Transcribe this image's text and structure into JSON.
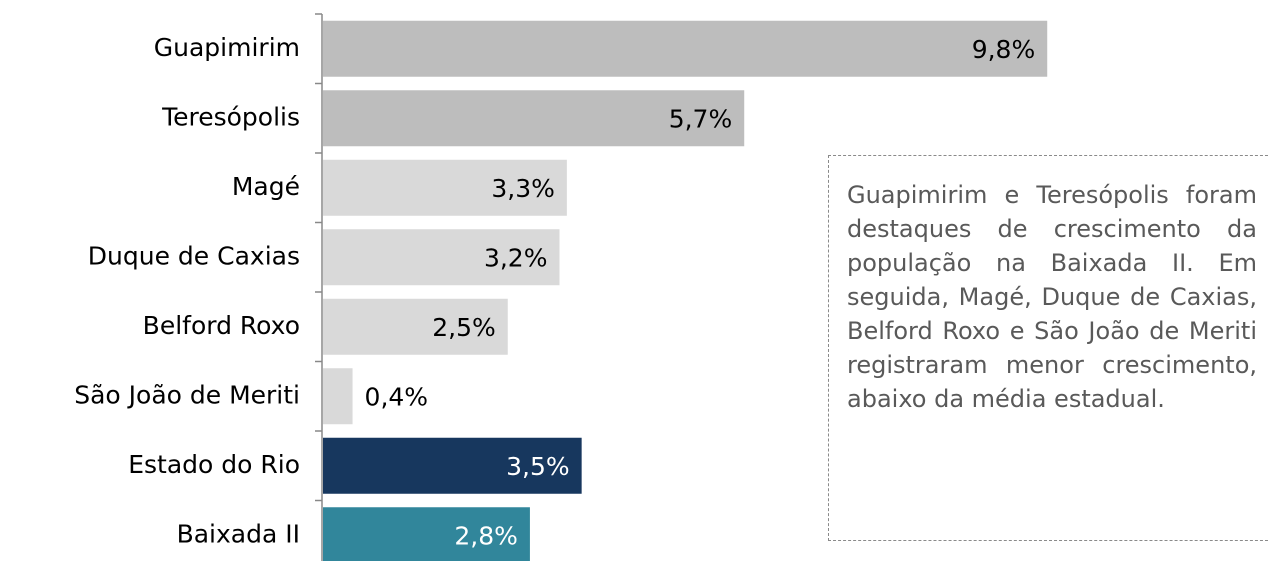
{
  "chart_data": {
    "type": "bar",
    "orientation": "horizontal",
    "categories": [
      "Guapimirim",
      "Teresópolis",
      "Magé",
      "Duque de Caxias",
      "Belford Roxo",
      "São João de Meriti",
      "Estado do Rio",
      "Baixada II"
    ],
    "values": [
      9.8,
      5.7,
      3.3,
      3.2,
      2.5,
      0.4,
      3.5,
      2.8
    ],
    "value_labels": [
      "9,8%",
      "5,7%",
      "3,3%",
      "3,2%",
      "2,5%",
      "0,4%",
      "3,5%",
      "2,8%"
    ],
    "colors": [
      "#bdbdbd",
      "#bdbdbd",
      "#d9d9d9",
      "#d9d9d9",
      "#d9d9d9",
      "#d9d9d9",
      "#17375e",
      "#31869b"
    ],
    "annotation": "Guapimirim e Teresópolis foram destaques de crescimento da população na Baixada II.  Em seguida, Magé, Duque de Caxias, Belford Roxo e São João de Meriti registraram menor crescimento, abaixo da média estadual."
  }
}
